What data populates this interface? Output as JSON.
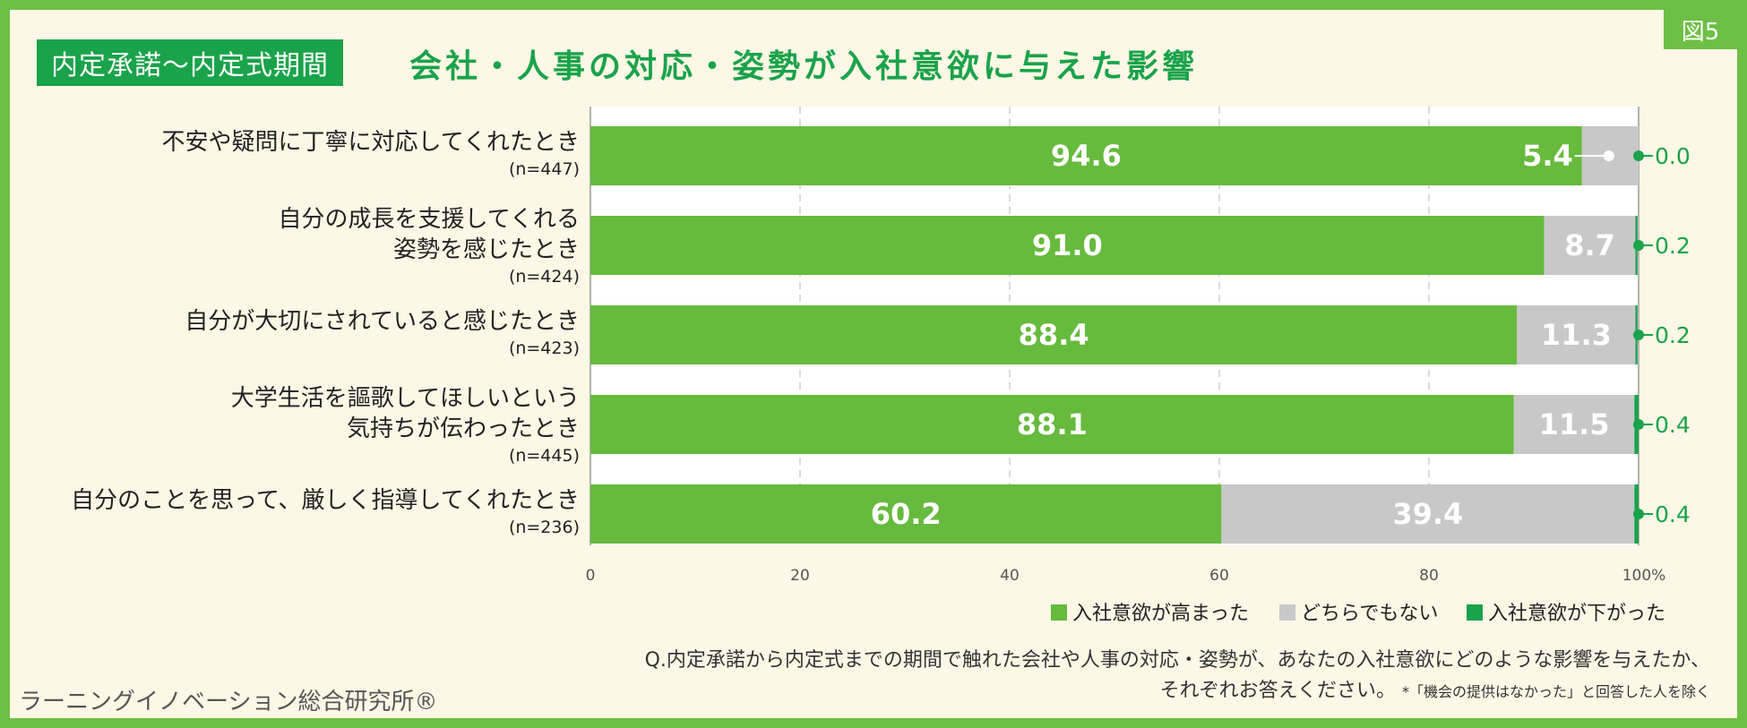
{
  "figure_label": "図5",
  "period_label": "内定承諾～内定式期間",
  "chart_data": {
    "type": "bar",
    "orientation": "horizontal",
    "stacked": true,
    "title": "会社・人事の対応・姿勢が入社意欲に与えた影響",
    "categories": [
      {
        "lines": [
          "不安や疑問に丁寧に対応してくれたとき"
        ],
        "n": "(n=447)"
      },
      {
        "lines": [
          "自分の成長を支援してくれる",
          "姿勢を感じたとき"
        ],
        "n": "(n=424)"
      },
      {
        "lines": [
          "自分が大切にされていると感じたとき"
        ],
        "n": "(n=423)"
      },
      {
        "lines": [
          "大学生活を謳歌してほしいという",
          "気持ちが伝わったとき"
        ],
        "n": "(n=445)"
      },
      {
        "lines": [
          "自分のことを思って、厳しく指導してくれたとき"
        ],
        "n": "(n=236)"
      }
    ],
    "series": [
      {
        "name": "入社意欲が高まった",
        "color": "#66ba3d",
        "values": [
          94.6,
          91.0,
          88.4,
          88.1,
          60.2
        ],
        "labels": [
          "94.6",
          "91.0",
          "88.4",
          "88.1",
          "60.2"
        ]
      },
      {
        "name": "どちらでもない",
        "color": "#c8c8c8",
        "values": [
          5.4,
          8.7,
          11.3,
          11.5,
          39.4
        ],
        "labels": [
          "5.4",
          "8.7",
          "11.3",
          "11.5",
          "39.4"
        ]
      },
      {
        "name": "入社意欲が下がった",
        "color": "#1aa34a",
        "values": [
          0.0,
          0.2,
          0.2,
          0.4,
          0.4
        ],
        "labels": [
          "0.0",
          "0.2",
          "0.2",
          "0.4",
          "0.4"
        ]
      }
    ],
    "xlim": [
      0,
      100
    ],
    "xticks": [
      "0",
      "20",
      "40",
      "60",
      "80",
      "100%"
    ],
    "grid": true,
    "legend_position": "bottom-right"
  },
  "footnote": {
    "line1": "Q.内定承諾から内定式までの期間で触れた会社や人事の対応・姿勢が、あなたの入社意欲にどのような影響を与えたか、",
    "line2": "それぞれお答えください。",
    "note": "*「機会の提供はなかった」と回答した人を除く"
  },
  "organization": "ラーニングイノベーション総合研究所®"
}
